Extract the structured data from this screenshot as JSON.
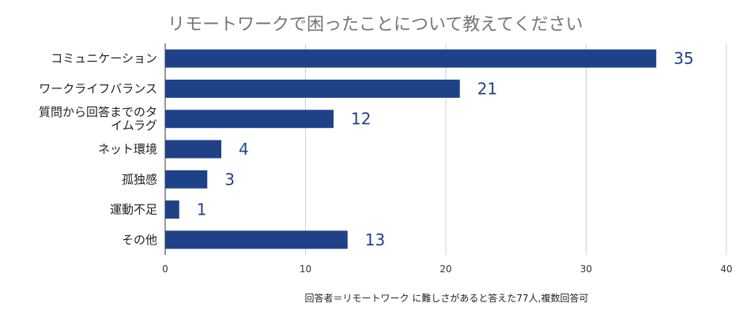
{
  "chart_data": {
    "type": "bar",
    "orientation": "horizontal",
    "title": "リモートワークで困ったことについて教えてください",
    "categories": [
      [
        "コミュニケーション"
      ],
      [
        "ワークライフバランス"
      ],
      [
        "質問から回答までのタ",
        "イムラグ"
      ],
      [
        "ネット環境"
      ],
      [
        "孤独感"
      ],
      [
        "運動不足"
      ],
      [
        "その他"
      ]
    ],
    "values": [
      35,
      21,
      12,
      4,
      3,
      1,
      13
    ],
    "xlim": [
      0,
      40
    ],
    "xticks": [
      0,
      10,
      20,
      30,
      40
    ],
    "grid": true,
    "bar_color": "#1f4188",
    "footnote": "回答者＝リモートワーク に難しさがあると答えた77人,複数回答可"
  }
}
